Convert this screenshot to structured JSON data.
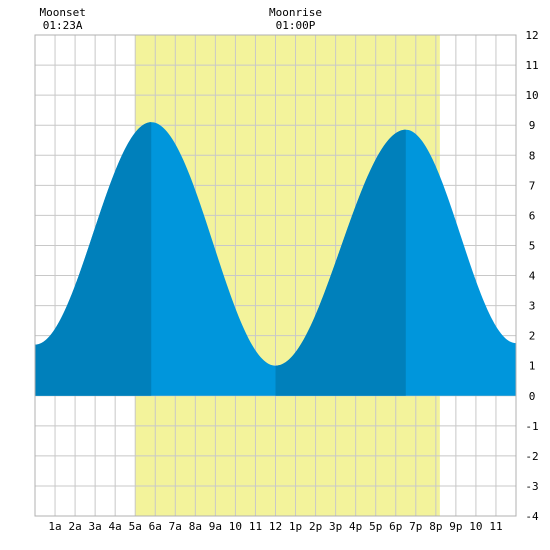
{
  "chart_data": {
    "type": "area",
    "title": "",
    "xlabel": "",
    "ylabel": "",
    "xlim": [
      0,
      24
    ],
    "ylim": [
      -4,
      12
    ],
    "grid": true,
    "x_tick_labels": [
      "1a",
      "2a",
      "3a",
      "4a",
      "5a",
      "6a",
      "7a",
      "8a",
      "9a",
      "10",
      "11",
      "12",
      "1p",
      "2p",
      "3p",
      "4p",
      "5p",
      "6p",
      "7p",
      "8p",
      "9p",
      "10",
      "11"
    ],
    "y_ticks": [
      -4,
      -3,
      -2,
      -1,
      0,
      1,
      2,
      3,
      4,
      5,
      6,
      7,
      8,
      9,
      10,
      11,
      12
    ],
    "daylight": {
      "start_hour": 5.0,
      "end_hour": 20.2
    },
    "tide": {
      "extremes": [
        {
          "hour": 0.0,
          "height": 1.7
        },
        {
          "hour": 5.8,
          "height": 9.1
        },
        {
          "hour": 12.0,
          "height": 1.0
        },
        {
          "hour": 18.5,
          "height": 8.85
        },
        {
          "hour": 24.0,
          "height": 1.75
        }
      ],
      "dark_bands": [
        {
          "start_hour": 0.0,
          "end_hour": 5.8
        },
        {
          "start_hour": 12.0,
          "end_hour": 18.5
        }
      ]
    },
    "annotations": {
      "moonset": {
        "label": "Moonset",
        "time": "01:23A",
        "hour": 1.38
      },
      "moonrise": {
        "label": "Moonrise",
        "time": "01:00P",
        "hour": 13.0
      }
    }
  },
  "colors": {
    "daylight": "#f3f39b",
    "tide_light": "#0096dc",
    "tide_dark": "#0080bb",
    "grid": "#c8c8c8",
    "border": "#b0b0b0"
  }
}
